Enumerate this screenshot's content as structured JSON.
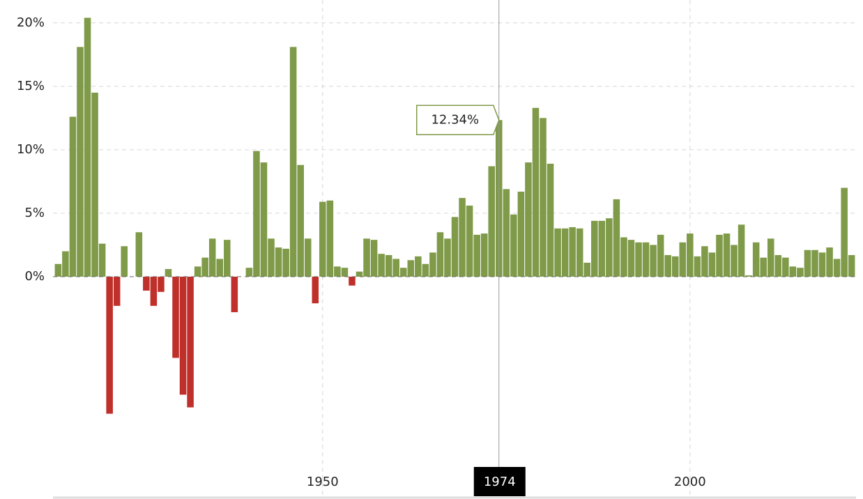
{
  "chart_data": {
    "type": "bar",
    "x": [
      1914,
      1915,
      1916,
      1917,
      1918,
      1919,
      1920,
      1921,
      1922,
      1923,
      1924,
      1925,
      1926,
      1927,
      1928,
      1929,
      1930,
      1931,
      1932,
      1933,
      1934,
      1935,
      1936,
      1937,
      1938,
      1939,
      1940,
      1941,
      1942,
      1943,
      1944,
      1945,
      1946,
      1947,
      1948,
      1949,
      1950,
      1951,
      1952,
      1953,
      1954,
      1955,
      1956,
      1957,
      1958,
      1959,
      1960,
      1961,
      1962,
      1963,
      1964,
      1965,
      1966,
      1967,
      1968,
      1969,
      1970,
      1971,
      1972,
      1973,
      1974,
      1975,
      1976,
      1977,
      1978,
      1979,
      1980,
      1981,
      1982,
      1983,
      1984,
      1985,
      1986,
      1987,
      1988,
      1989,
      1990,
      1991,
      1992,
      1993,
      1994,
      1995,
      1996,
      1997,
      1998,
      1999,
      2000,
      2001,
      2002,
      2003,
      2004,
      2005,
      2006,
      2007,
      2008,
      2009,
      2010,
      2011,
      2012,
      2013,
      2014,
      2015,
      2016,
      2017,
      2018,
      2019,
      2020,
      2021,
      2022
    ],
    "values": [
      1.0,
      2.0,
      12.6,
      18.1,
      20.4,
      14.5,
      2.6,
      -10.8,
      -2.3,
      2.4,
      0.0,
      3.5,
      -1.1,
      -2.3,
      -1.2,
      0.6,
      -6.4,
      -9.3,
      -10.3,
      0.8,
      1.5,
      3.0,
      1.4,
      2.9,
      -2.8,
      0.0,
      0.7,
      9.9,
      9.0,
      3.0,
      2.3,
      2.2,
      18.1,
      8.8,
      3.0,
      -2.1,
      5.9,
      6.0,
      0.8,
      0.7,
      -0.7,
      0.4,
      3.0,
      2.9,
      1.8,
      1.7,
      1.4,
      0.7,
      1.3,
      1.6,
      1.0,
      1.9,
      3.5,
      3.0,
      4.7,
      6.2,
      5.6,
      3.3,
      3.4,
      8.7,
      12.34,
      6.9,
      4.9,
      6.7,
      9.0,
      13.3,
      12.5,
      8.9,
      3.8,
      3.8,
      3.9,
      3.8,
      1.1,
      4.4,
      4.4,
      4.6,
      6.1,
      3.1,
      2.9,
      2.7,
      2.7,
      2.5,
      3.3,
      1.7,
      1.6,
      2.7,
      3.4,
      1.6,
      2.4,
      1.9,
      3.3,
      3.4,
      2.5,
      4.1,
      0.1,
      2.7,
      1.5,
      3.0,
      1.7,
      1.5,
      0.8,
      0.7,
      2.1,
      2.1,
      1.9,
      2.3,
      1.4,
      7.0,
      1.7
    ],
    "color": "#7f9a48",
    "negative_color": "#c0302b",
    "xlim": [
      1913.3,
      2022.6
    ],
    "xticks": [
      1950,
      2000
    ],
    "ylim": [
      -17.3,
      21.8
    ],
    "yticks": [
      {
        "value": 0,
        "label": "0%"
      },
      {
        "value": 5,
        "label": "5%"
      },
      {
        "value": 10,
        "label": "10%"
      },
      {
        "value": 15,
        "label": "15%"
      },
      {
        "value": 20,
        "label": "20%"
      }
    ],
    "grid": true,
    "tooltip": {
      "x": 1974,
      "label": "12.34%"
    }
  }
}
